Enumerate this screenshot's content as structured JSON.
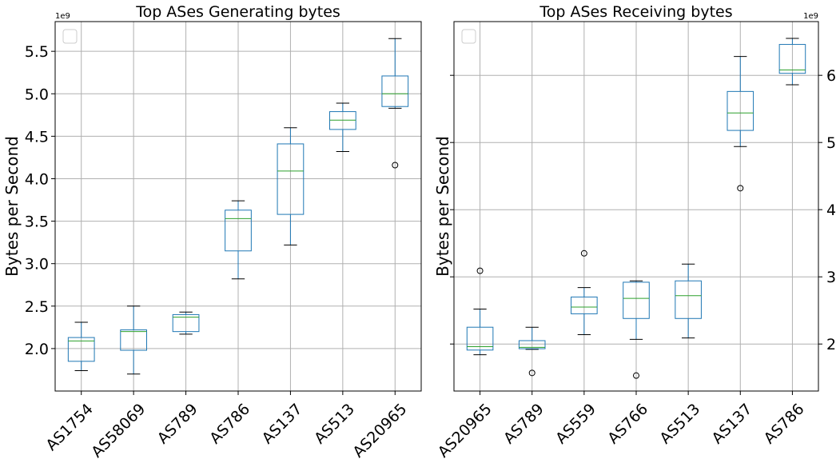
{
  "chart_data": [
    {
      "type": "box",
      "title": "Top ASes Generating bytes",
      "ylabel": "Bytes per Second",
      "offset_text": "1e9",
      "y_scale": 1000000000,
      "ylim": [
        1.5,
        5.85
      ],
      "yticks": [
        2.0,
        2.5,
        3.0,
        3.5,
        4.0,
        4.5,
        5.0,
        5.5
      ],
      "ytick_labels": [
        "2.0",
        "2.5",
        "3.0",
        "3.5",
        "4.0",
        "4.5",
        "5.0",
        "5.5"
      ],
      "y_axis_side": "left",
      "grid": true,
      "categories": [
        "AS1754",
        "AS58069",
        "AS789",
        "AS786",
        "AS137",
        "AS513",
        "AS20965"
      ],
      "boxes": [
        {
          "whislo": 1.74,
          "q1": 1.85,
          "med": 2.09,
          "q3": 2.13,
          "whishi": 2.31,
          "fliers": []
        },
        {
          "whislo": 1.7,
          "q1": 1.98,
          "med": 2.2,
          "q3": 2.22,
          "whishi": 2.5,
          "fliers": []
        },
        {
          "whislo": 2.17,
          "q1": 2.2,
          "med": 2.37,
          "q3": 2.4,
          "whishi": 2.43,
          "fliers": []
        },
        {
          "whislo": 2.82,
          "q1": 3.15,
          "med": 3.53,
          "q3": 3.63,
          "whishi": 3.74,
          "fliers": []
        },
        {
          "whislo": 3.22,
          "q1": 3.58,
          "med": 4.09,
          "q3": 4.41,
          "whishi": 4.6,
          "fliers": []
        },
        {
          "whislo": 4.32,
          "q1": 4.58,
          "med": 4.69,
          "q3": 4.79,
          "whishi": 4.89,
          "fliers": []
        },
        {
          "whislo": 4.83,
          "q1": 4.85,
          "med": 5.0,
          "q3": 5.21,
          "whishi": 5.65,
          "fliers": [
            4.16
          ]
        }
      ]
    },
    {
      "type": "box",
      "title": "Top ASes Receiving bytes",
      "ylabel": "Bytes per Second",
      "offset_text": "1e9",
      "y_scale": 1000000000,
      "ylim": [
        1.3,
        6.8
      ],
      "yticks": [
        2,
        3,
        4,
        5,
        6
      ],
      "ytick_labels": [
        "2",
        "3",
        "4",
        "5",
        "6"
      ],
      "y_axis_side": "right",
      "grid": true,
      "categories": [
        "AS20965",
        "AS789",
        "AS559",
        "AS766",
        "AS513",
        "AS137",
        "AS786"
      ],
      "boxes": [
        {
          "whislo": 1.84,
          "q1": 1.91,
          "med": 1.96,
          "q3": 2.25,
          "whishi": 2.52,
          "fliers": [
            3.09
          ]
        },
        {
          "whislo": 1.92,
          "q1": 1.93,
          "med": 1.95,
          "q3": 2.05,
          "whishi": 2.25,
          "fliers": [
            1.57
          ]
        },
        {
          "whislo": 2.14,
          "q1": 2.45,
          "med": 2.55,
          "q3": 2.7,
          "whishi": 2.84,
          "fliers": [
            3.35
          ]
        },
        {
          "whislo": 2.07,
          "q1": 2.38,
          "med": 2.68,
          "q3": 2.92,
          "whishi": 2.94,
          "fliers": [
            1.53
          ]
        },
        {
          "whislo": 2.09,
          "q1": 2.38,
          "med": 2.72,
          "q3": 2.94,
          "whishi": 3.19,
          "fliers": []
        },
        {
          "whislo": 4.94,
          "q1": 5.18,
          "med": 5.44,
          "q3": 5.76,
          "whishi": 6.28,
          "fliers": [
            4.32
          ]
        },
        {
          "whislo": 5.86,
          "q1": 6.03,
          "med": 6.08,
          "q3": 6.46,
          "whishi": 6.55,
          "fliers": []
        }
      ]
    }
  ],
  "colors": {
    "box": "#1f77b4",
    "median": "#2ca02c",
    "whisker": "#000000",
    "grid": "#b0b0b0",
    "axes": "#000000"
  }
}
